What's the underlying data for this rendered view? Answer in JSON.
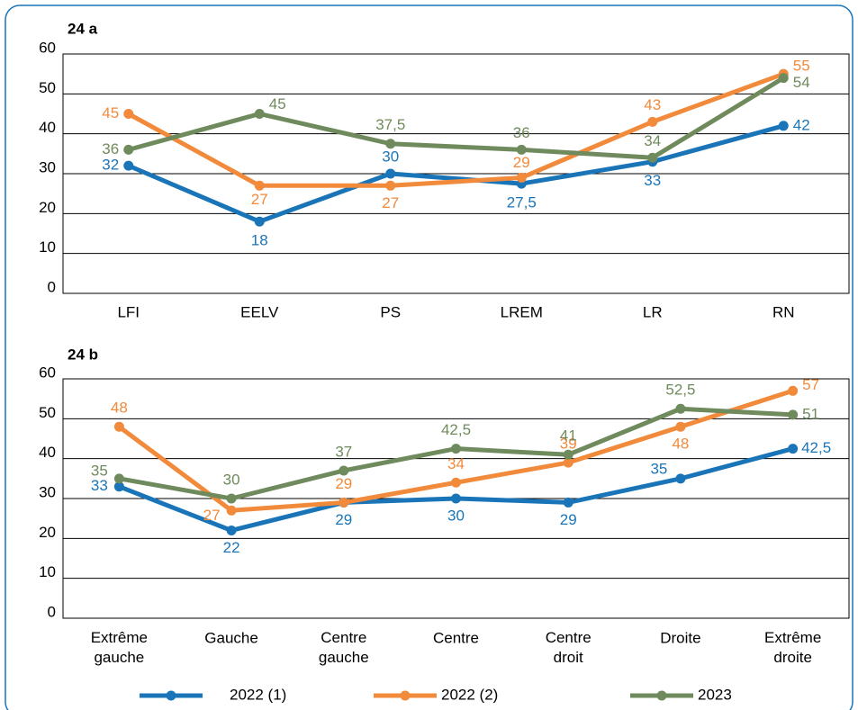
{
  "chart_data": [
    {
      "type": "line",
      "title": "24 a",
      "categories": [
        "LFI",
        "EELV",
        "PS",
        "LREM",
        "LR",
        "RN"
      ],
      "ylim": [
        0,
        60
      ],
      "yticks": [
        0,
        10,
        20,
        30,
        40,
        50,
        60
      ],
      "grid": true,
      "series": [
        {
          "color": "#1a75b8",
          "values": [
            32,
            18,
            30,
            27.5,
            33,
            42
          ],
          "value_labels": [
            "32",
            "18",
            "30",
            "27,5",
            "33",
            "42"
          ]
        },
        {
          "color": "#f28a3c",
          "values": [
            45,
            27,
            27,
            29,
            43,
            55
          ]
        },
        {
          "color": "#6f8a5c",
          "values": [
            36,
            45,
            37.5,
            36,
            34,
            54
          ],
          "value_labels": [
            "36",
            "45",
            "37,5",
            "36",
            "34",
            "54"
          ]
        }
      ]
    },
    {
      "type": "line",
      "title": "24 b",
      "categories": [
        "Extrême gauche",
        "Gauche",
        "Centre gauche",
        "Centre",
        "Centre droit",
        "Droite",
        "Extrême droite"
      ],
      "ylim": [
        0,
        60
      ],
      "yticks": [
        0,
        10,
        20,
        30,
        40,
        50,
        60
      ],
      "grid": true,
      "legend": "bottom",
      "series": [
        {
          "name": "2022 (1)",
          "color": "#1a75b8",
          "values": [
            33,
            22,
            29,
            30,
            29,
            35,
            42.5
          ],
          "value_labels": [
            "33",
            "22",
            "29",
            "30",
            "29",
            "35",
            "42,5"
          ]
        },
        {
          "name": "2022 (2)",
          "color": "#f28a3c",
          "values": [
            48,
            27,
            29,
            34,
            39,
            48,
            57
          ]
        },
        {
          "name": "2023",
          "color": "#6f8a5c",
          "values": [
            35,
            30,
            37,
            42.5,
            41,
            52.5,
            51
          ],
          "value_labels": [
            "35",
            "30",
            "37",
            "42,5",
            "41",
            "52,5",
            "51"
          ]
        }
      ]
    }
  ]
}
